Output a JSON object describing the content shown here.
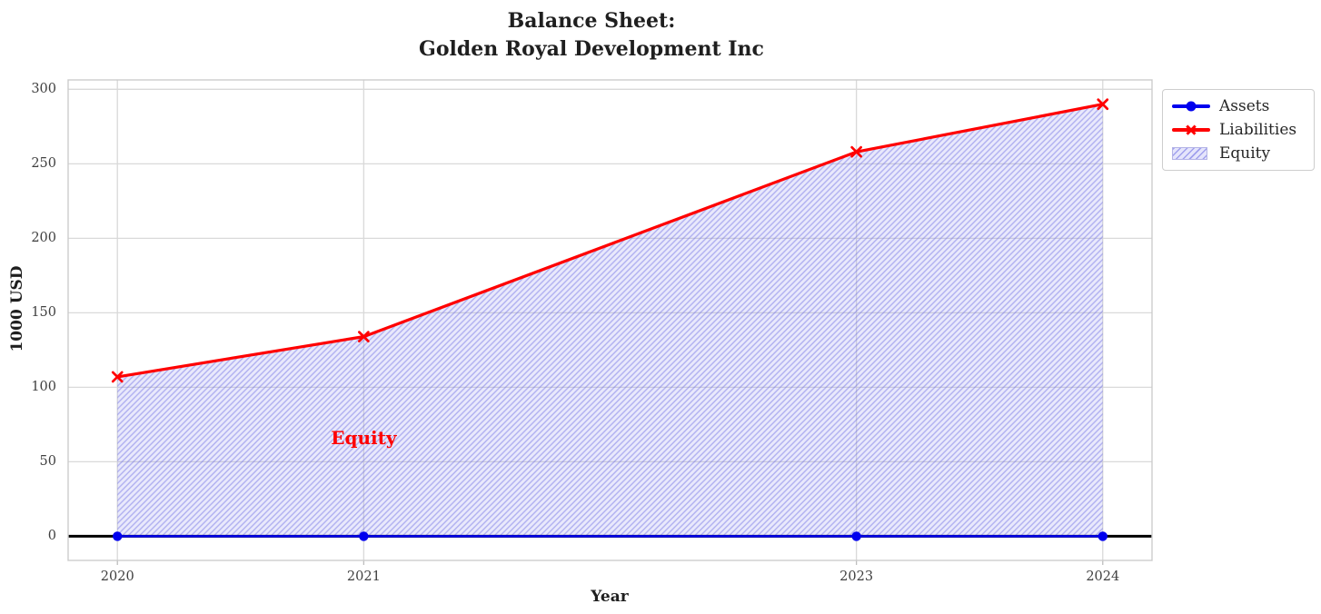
{
  "title": {
    "line1": "Balance Sheet:",
    "line2": "Golden Royal Development Inc"
  },
  "chart_data": {
    "type": "line",
    "title": "Balance Sheet: Golden Royal Development Inc",
    "xlabel": "Year",
    "ylabel": "1000 USD",
    "x": [
      2020,
      2021,
      2023,
      2024
    ],
    "series": [
      {
        "name": "Assets",
        "values": [
          0,
          0,
          0,
          0
        ],
        "color": "#0000ee",
        "marker": "circle",
        "line_width": 2.5
      },
      {
        "name": "Liabilities",
        "values": [
          107,
          134,
          258,
          290
        ],
        "color": "#ff0000",
        "marker": "x",
        "line_width": 3.2
      }
    ],
    "area": {
      "label": "Equity",
      "between": [
        "Assets",
        "Liabilities"
      ],
      "fill_color": "#ccccff",
      "hatch": "//"
    },
    "annotation": {
      "text": "Equity",
      "x": 2021,
      "y": 66,
      "color": "#ff0000"
    },
    "xticks": [
      2020,
      2021,
      2023,
      2024
    ],
    "yticks": [
      0,
      50,
      100,
      150,
      200,
      250,
      300
    ],
    "xlim": [
      2019.8,
      2024.2
    ],
    "ylim": [
      -16.2,
      306.3
    ],
    "grid": true,
    "zero_line_color": "#000000",
    "legend": {
      "position": "upper-right-outside",
      "items": [
        {
          "label": "Assets",
          "swatch": "line-circle",
          "color": "#0000ee"
        },
        {
          "label": "Liabilities",
          "swatch": "line-x",
          "color": "#ff0000"
        },
        {
          "label": "Equity",
          "swatch": "hatch-rect",
          "color": "#ccccff"
        }
      ]
    }
  }
}
